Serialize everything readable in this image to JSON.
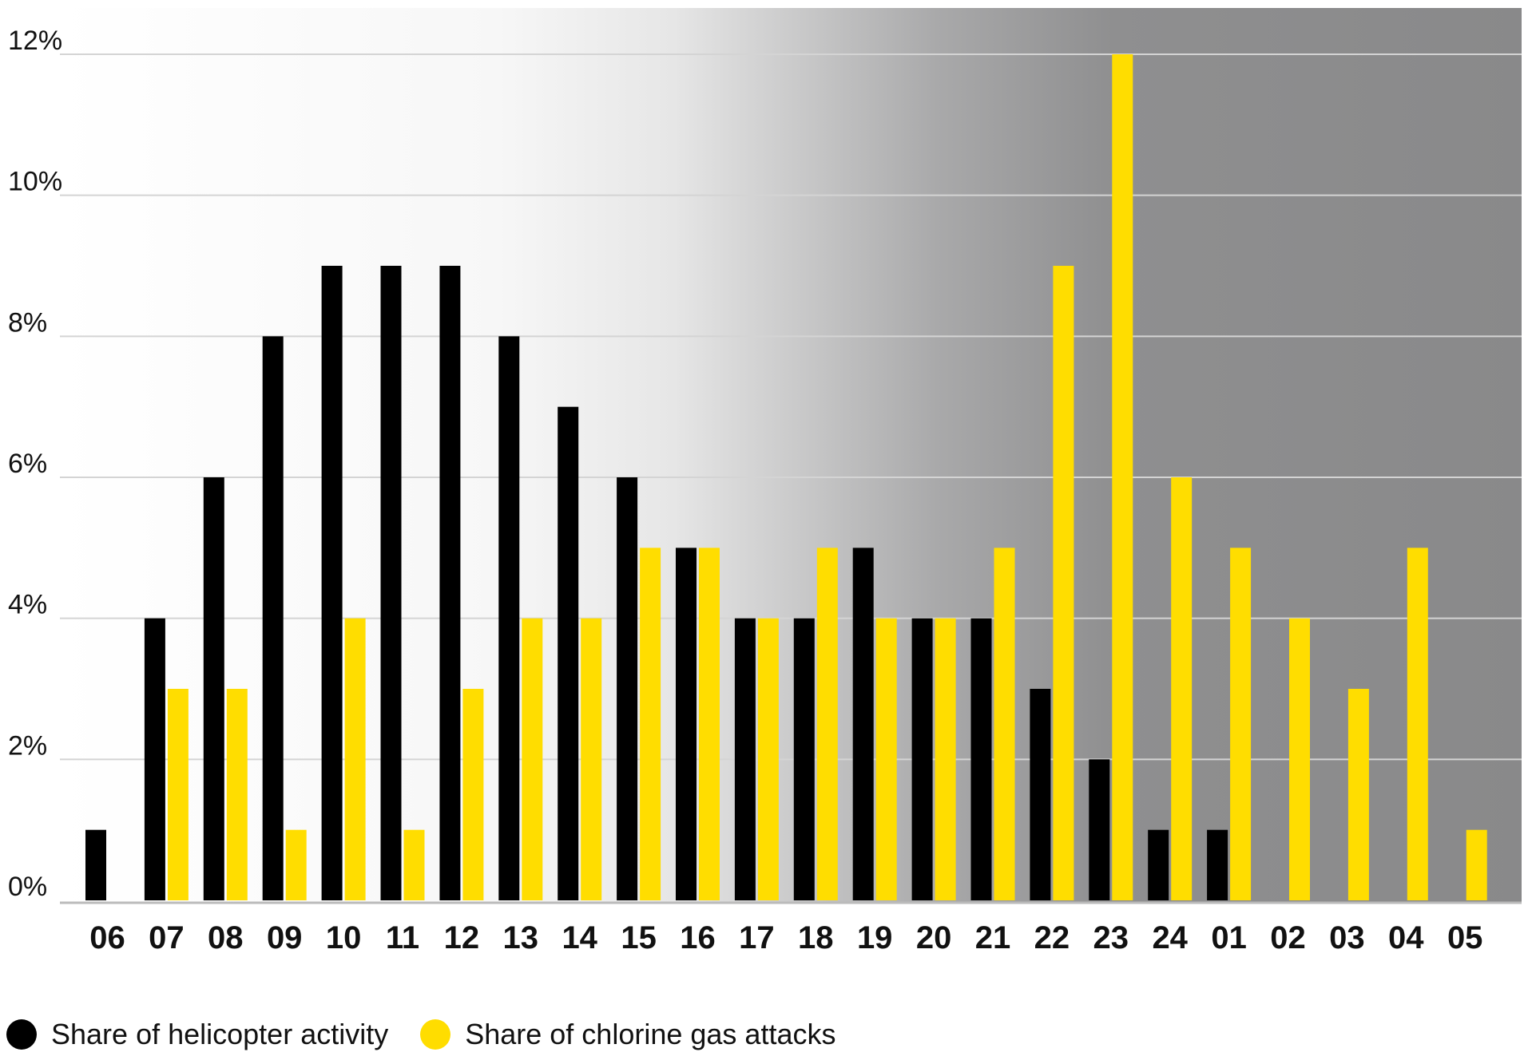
{
  "chart_data": {
    "type": "bar",
    "categories": [
      "06",
      "07",
      "08",
      "09",
      "10",
      "11",
      "12",
      "13",
      "14",
      "15",
      "16",
      "17",
      "18",
      "19",
      "20",
      "21",
      "22",
      "23",
      "24",
      "01",
      "02",
      "03",
      "04",
      "05"
    ],
    "series": [
      {
        "name": "Share of helicopter activity",
        "color": "#000000",
        "values": [
          1,
          4,
          6,
          8,
          9,
          9,
          9,
          8,
          7,
          6,
          5,
          4,
          4,
          5,
          4,
          4,
          3,
          2,
          1,
          1,
          0,
          0,
          0,
          0
        ]
      },
      {
        "name": "Share of chlorine gas attacks",
        "color": "#FFDD00",
        "values": [
          0,
          3,
          3,
          1,
          4,
          1,
          3,
          4,
          4,
          5,
          5,
          4,
          5,
          4,
          4,
          5,
          9,
          12,
          6,
          5,
          4,
          3,
          5,
          1
        ]
      }
    ],
    "y_ticks": [
      "0%",
      "2%",
      "4%",
      "6%",
      "8%",
      "10%",
      "12%"
    ],
    "ylim": [
      0,
      12
    ],
    "grid": true,
    "background": "gradient from white (left) to grey #8a8a8b (right)",
    "legend_position": "bottom-left"
  }
}
